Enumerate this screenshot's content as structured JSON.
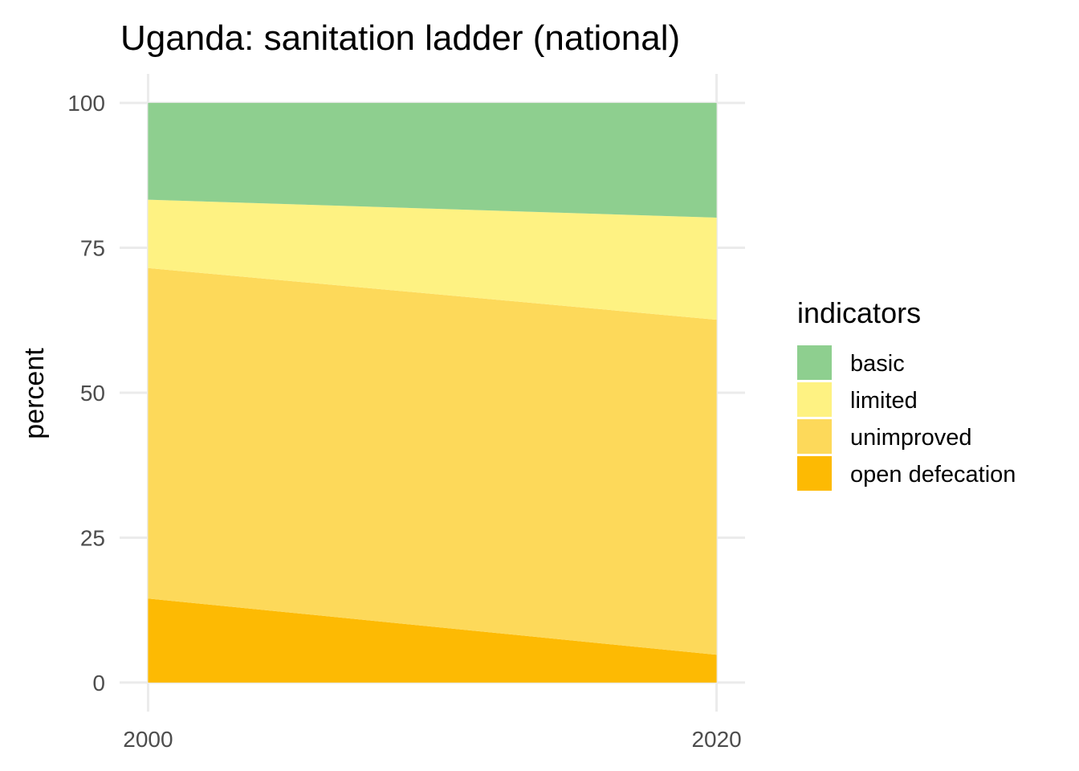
{
  "chart_data": {
    "type": "area",
    "stacked": true,
    "title": "Uganda: sanitation ladder (national)",
    "xlabel": "",
    "ylabel": "percent",
    "x": [
      2000,
      2020
    ],
    "xticks": [
      2000,
      2020
    ],
    "yticks": [
      0,
      25,
      50,
      75,
      100
    ],
    "xlim": [
      1999,
      2021
    ],
    "ylim": [
      -5,
      105
    ],
    "grid": true,
    "legend": {
      "title": "indicators",
      "position": "right"
    },
    "series": [
      {
        "name": "basic",
        "values": [
          16.7,
          19.8
        ],
        "color": "#8ECF8F"
      },
      {
        "name": "limited",
        "values": [
          11.8,
          17.6
        ],
        "color": "#FEF282"
      },
      {
        "name": "unimproved",
        "values": [
          57.0,
          57.8
        ],
        "color": "#FDD95A"
      },
      {
        "name": "open defecation",
        "values": [
          14.5,
          4.8
        ],
        "color": "#FDBA03"
      }
    ]
  }
}
